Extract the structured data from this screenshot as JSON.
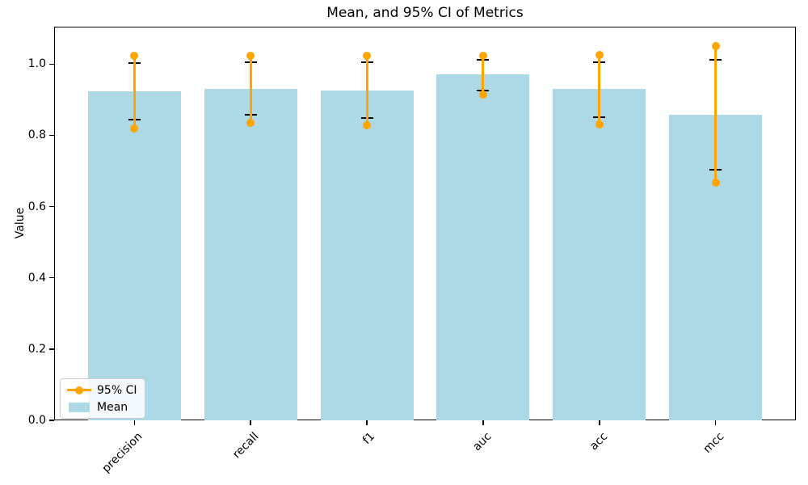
{
  "chart_data": {
    "type": "bar",
    "title": "Mean, and 95% CI of Metrics",
    "xlabel": "",
    "ylabel": "Value",
    "categories": [
      "precision",
      "recall",
      "f1",
      "auc",
      "acc",
      "mcc"
    ],
    "series": [
      {
        "name": "Mean",
        "values": [
          0.924,
          0.93,
          0.926,
          0.97,
          0.93,
          0.857
        ]
      },
      {
        "name": "95% CI lower",
        "values": [
          0.82,
          0.836,
          0.828,
          0.915,
          0.83,
          0.667
        ]
      },
      {
        "name": "95% CI upper",
        "values": [
          1.024,
          1.023,
          1.023,
          1.023,
          1.025,
          1.05
        ]
      },
      {
        "name": "CI cap lower",
        "values": [
          0.845,
          0.858,
          0.848,
          0.926,
          0.851,
          0.703
        ]
      },
      {
        "name": "CI cap upper",
        "values": [
          1.004,
          1.005,
          1.006,
          1.012,
          1.006,
          1.011
        ]
      }
    ],
    "ylim": [
      0,
      1.105
    ],
    "yticks": [
      0.0,
      0.2,
      0.4,
      0.6,
      0.8,
      1.0
    ],
    "ytick_labels": [
      "0.0",
      "0.2",
      "0.4",
      "0.6",
      "0.8",
      "1.0"
    ],
    "grid": false,
    "legend_position": "lower left"
  },
  "legend": {
    "items": [
      {
        "label": "95% CI",
        "color": "#FFA500",
        "kind": "line-dot"
      },
      {
        "label": "Mean",
        "color": "#ADD8E6",
        "kind": "patch"
      }
    ]
  },
  "colors": {
    "bar": "#ADD8E6",
    "ci": "#FFA500",
    "cap": "#000000",
    "spine": "#000000"
  }
}
